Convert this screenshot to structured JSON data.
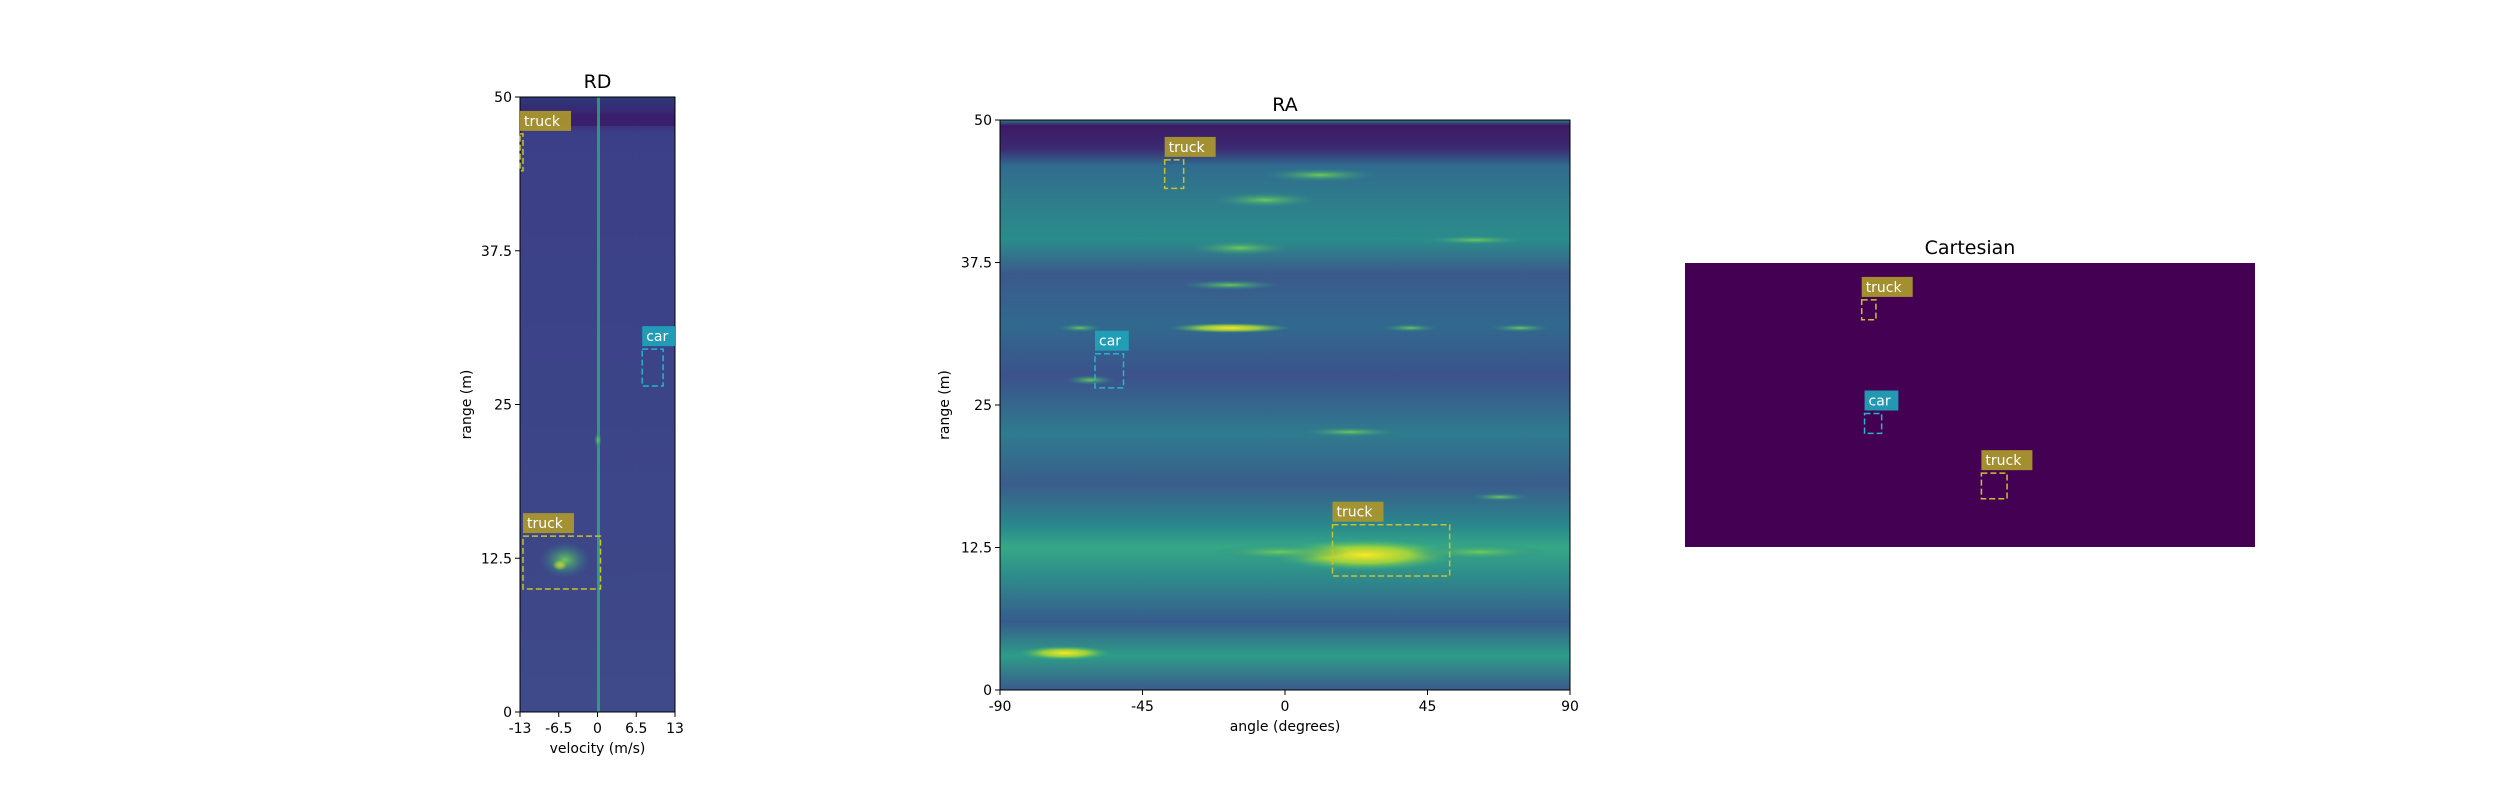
{
  "colors": {
    "truck": "#a9962e",
    "truck_box": "#c8c22a",
    "car": "#21a0b8",
    "car_box": "#26b3d0",
    "viridis_bg": "#3e4a89",
    "cartesian_bg": "#440154"
  },
  "chart_data": [
    {
      "type": "heatmap",
      "title": "RD",
      "xlabel": "velocity (m/s)",
      "ylabel": "range (m)",
      "xlim": [
        -13,
        13
      ],
      "ylim": [
        0,
        50
      ],
      "xticks": [
        -13,
        -6.5,
        0,
        6.5,
        13
      ],
      "xtick_labels": [
        "-13",
        "-6.5",
        "0",
        "6.5",
        "13"
      ],
      "yticks": [
        0,
        12.5,
        25,
        37.5,
        50
      ],
      "ytick_labels": [
        "0",
        "12.5",
        "25",
        "37.5",
        "50"
      ],
      "detections": [
        {
          "label": "truck",
          "x0": -13,
          "x1": -12.5,
          "y0": 44,
          "y1": 47
        },
        {
          "label": "car",
          "x0": 7.5,
          "x1": 11,
          "y0": 26.5,
          "y1": 29.5
        },
        {
          "label": "truck",
          "x0": -12.5,
          "x1": 0.5,
          "y0": 10,
          "y1": 14.3
        }
      ]
    },
    {
      "type": "heatmap",
      "title": "RA",
      "xlabel": "angle (degrees)",
      "ylabel": "range (m)",
      "xlim": [
        -90,
        90
      ],
      "ylim": [
        0,
        50
      ],
      "xticks": [
        -90,
        -45,
        0,
        45,
        90
      ],
      "xtick_labels": [
        "-90",
        "-45",
        "0",
        "45",
        "90"
      ],
      "yticks": [
        0,
        12.5,
        25,
        37.5,
        50
      ],
      "ytick_labels": [
        "0",
        "12.5",
        "25",
        "37.5",
        "50"
      ],
      "detections": [
        {
          "label": "truck",
          "x0": -38,
          "x1": -32,
          "y0": 44,
          "y1": 46.5
        },
        {
          "label": "car",
          "x0": -60,
          "x1": -51,
          "y0": 26.5,
          "y1": 29.5
        },
        {
          "label": "truck",
          "x0": 15,
          "x1": 52,
          "y0": 10,
          "y1": 14.5
        }
      ]
    },
    {
      "type": "heatmap",
      "title": "Cartesian",
      "detections": [
        {
          "label": "truck",
          "x0": 0.31,
          "x1": 0.335,
          "y0": 0.13,
          "y1": 0.2
        },
        {
          "label": "car",
          "x0": 0.315,
          "x1": 0.345,
          "y0": 0.53,
          "y1": 0.6
        },
        {
          "label": "truck",
          "x0": 0.52,
          "x1": 0.565,
          "y0": 0.74,
          "y1": 0.83
        }
      ]
    }
  ]
}
